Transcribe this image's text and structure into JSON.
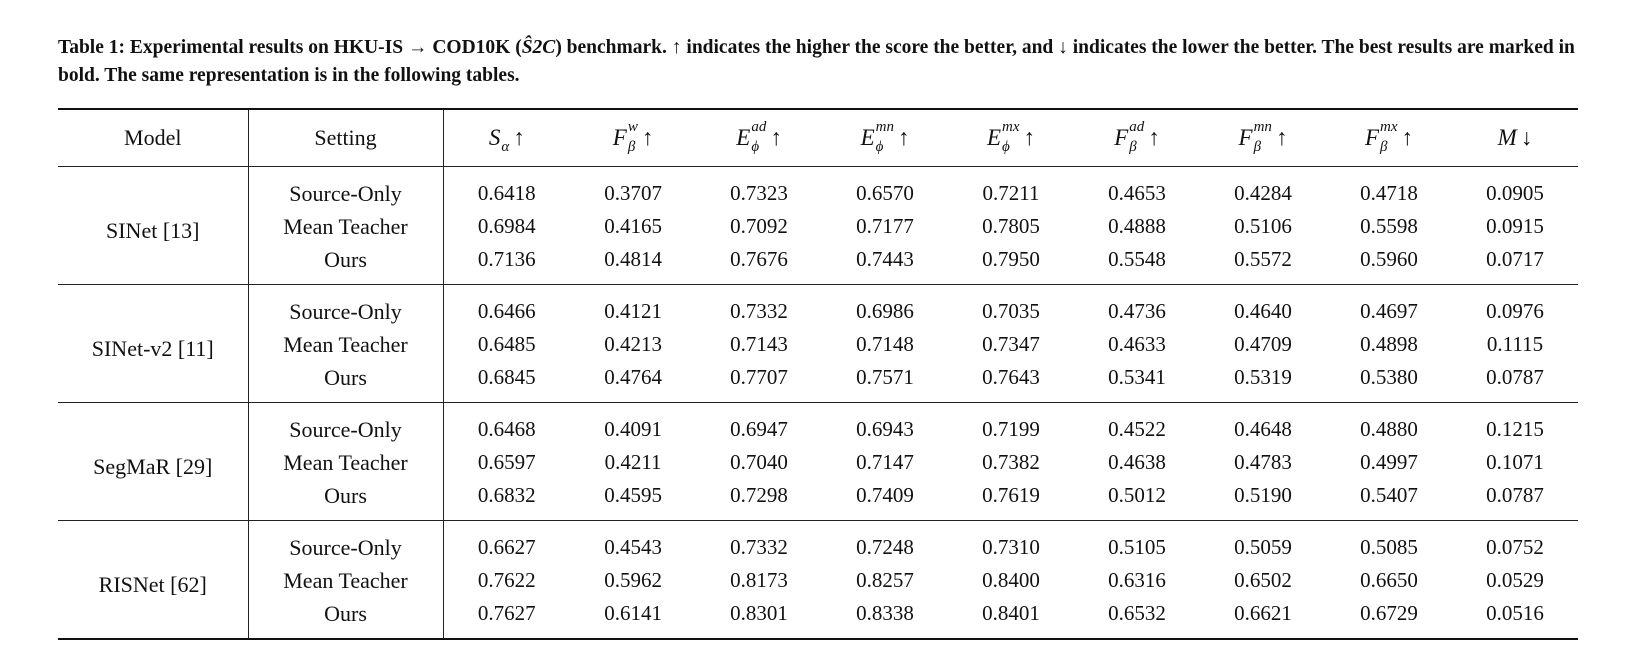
{
  "caption": {
    "label": "Table 1:",
    "text_before": " Experimental results on HKU-IS → COD10K (",
    "setting": "Ŝ2C",
    "text_after": ") benchmark. ↑ indicates the higher the score the better, and ↓ indicates the lower the better. The best results are marked in bold. The same representation is in the following tables."
  },
  "headers": {
    "model": "Model",
    "setting": "Setting",
    "metrics": [
      {
        "base": "S",
        "sup": "",
        "sub": "α",
        "arrow": "↑"
      },
      {
        "base": "F",
        "sup": "w",
        "sub": "β",
        "arrow": "↑"
      },
      {
        "base": "E",
        "sup": "ad",
        "sub": "ϕ",
        "arrow": "↑"
      },
      {
        "base": "E",
        "sup": "mn",
        "sub": "ϕ",
        "arrow": "↑"
      },
      {
        "base": "E",
        "sup": "mx",
        "sub": "ϕ",
        "arrow": "↑"
      },
      {
        "base": "F",
        "sup": "ad",
        "sub": "β",
        "arrow": "↑"
      },
      {
        "base": "F",
        "sup": "mn",
        "sub": "β",
        "arrow": "↑"
      },
      {
        "base": "F",
        "sup": "mx",
        "sub": "β",
        "arrow": "↑"
      },
      {
        "base": "M",
        "sup": "",
        "sub": "",
        "arrow": "↓"
      }
    ]
  },
  "groups": [
    {
      "model": "SINet [13]",
      "rows": [
        {
          "setting": "Source-Only",
          "best": false,
          "values": [
            "0.6418",
            "0.3707",
            "0.7323",
            "0.6570",
            "0.7211",
            "0.4653",
            "0.4284",
            "0.4718",
            "0.0905"
          ]
        },
        {
          "setting": "Mean Teacher",
          "best": false,
          "values": [
            "0.6984",
            "0.4165",
            "0.7092",
            "0.7177",
            "0.7805",
            "0.4888",
            "0.5106",
            "0.5598",
            "0.0915"
          ]
        },
        {
          "setting": "Ours",
          "best": true,
          "values": [
            "0.7136",
            "0.4814",
            "0.7676",
            "0.7443",
            "0.7950",
            "0.5548",
            "0.5572",
            "0.5960",
            "0.0717"
          ]
        }
      ]
    },
    {
      "model": "SINet-v2 [11]",
      "rows": [
        {
          "setting": "Source-Only",
          "best": false,
          "values": [
            "0.6466",
            "0.4121",
            "0.7332",
            "0.6986",
            "0.7035",
            "0.4736",
            "0.4640",
            "0.4697",
            "0.0976"
          ]
        },
        {
          "setting": "Mean Teacher",
          "best": false,
          "values": [
            "0.6485",
            "0.4213",
            "0.7143",
            "0.7148",
            "0.7347",
            "0.4633",
            "0.4709",
            "0.4898",
            "0.1115"
          ]
        },
        {
          "setting": "Ours",
          "best": true,
          "values": [
            "0.6845",
            "0.4764",
            "0.7707",
            "0.7571",
            "0.7643",
            "0.5341",
            "0.5319",
            "0.5380",
            "0.0787"
          ]
        }
      ]
    },
    {
      "model": "SegMaR [29]",
      "rows": [
        {
          "setting": "Source-Only",
          "best": false,
          "values": [
            "0.6468",
            "0.4091",
            "0.6947",
            "0.6943",
            "0.7199",
            "0.4522",
            "0.4648",
            "0.4880",
            "0.1215"
          ]
        },
        {
          "setting": "Mean Teacher",
          "best": false,
          "values": [
            "0.6597",
            "0.4211",
            "0.7040",
            "0.7147",
            "0.7382",
            "0.4638",
            "0.4783",
            "0.4997",
            "0.1071"
          ]
        },
        {
          "setting": "Ours",
          "best": true,
          "values": [
            "0.6832",
            "0.4595",
            "0.7298",
            "0.7409",
            "0.7619",
            "0.5012",
            "0.5190",
            "0.5407",
            "0.0787"
          ]
        }
      ]
    },
    {
      "model": "RISNet [62]",
      "rows": [
        {
          "setting": "Source-Only",
          "best": false,
          "values": [
            "0.6627",
            "0.4543",
            "0.7332",
            "0.7248",
            "0.7310",
            "0.5105",
            "0.5059",
            "0.5085",
            "0.0752"
          ]
        },
        {
          "setting": "Mean Teacher",
          "best": false,
          "values": [
            "0.7622",
            "0.5962",
            "0.8173",
            "0.8257",
            "0.8400",
            "0.6316",
            "0.6502",
            "0.6650",
            "0.0529"
          ]
        },
        {
          "setting": "Ours",
          "best": true,
          "values": [
            "0.7627",
            "0.6141",
            "0.8301",
            "0.8338",
            "0.8401",
            "0.6532",
            "0.6621",
            "0.6729",
            "0.0516"
          ]
        }
      ]
    }
  ]
}
